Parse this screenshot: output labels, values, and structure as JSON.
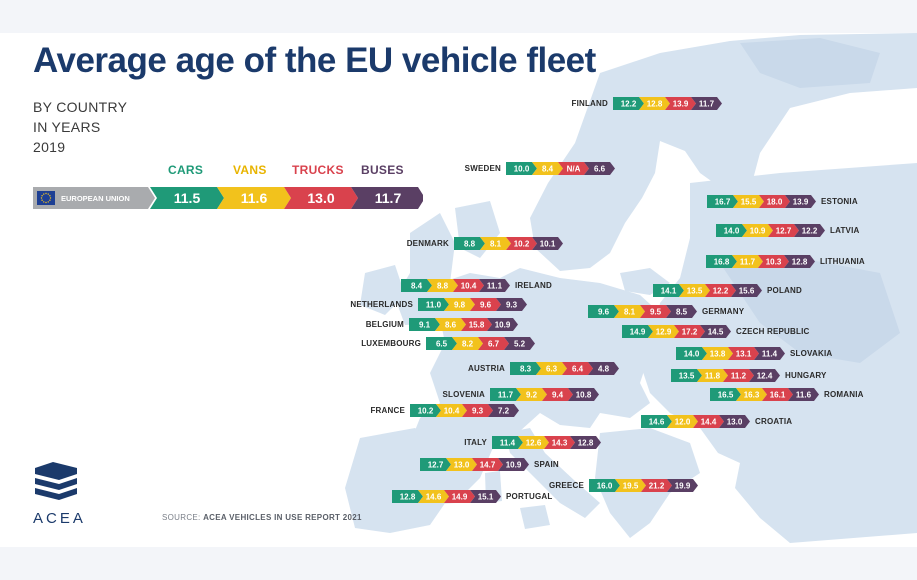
{
  "title": "Average age of the EU vehicle fleet",
  "subtitle": [
    "BY COUNTRY",
    "IN YEARS",
    "2019"
  ],
  "source": {
    "prefix": "SOURCE: ",
    "text": "ACEA VEHICLES IN USE REPORT 2021"
  },
  "logo_text": "ACEA",
  "colors": {
    "cars": "#1f9a78",
    "vans": "#f2c21c",
    "trucks": "#d9424d",
    "buses": "#5a3f64",
    "eu_grey": "#a9abae",
    "title": "#1b3a6b",
    "land": "#d6e3f0",
    "land_dark": "#c9d9ea",
    "water": "#ffffff"
  },
  "chart_data": {
    "type": "table",
    "series": [
      {
        "name": "CARS",
        "color": "#1f9a78"
      },
      {
        "name": "VANS",
        "color": "#f2c21c"
      },
      {
        "name": "TRUCKS",
        "color": "#d9424d"
      },
      {
        "name": "BUSES",
        "color": "#5a3f64"
      }
    ],
    "eu": {
      "label": "EUROPEAN UNION",
      "values": [
        "11.5",
        "11.6",
        "13.0",
        "11.7"
      ]
    },
    "countries": [
      {
        "name": "FINLAND",
        "values": [
          "12.2",
          "12.8",
          "13.9",
          "11.7"
        ],
        "label_side": "left"
      },
      {
        "name": "SWEDEN",
        "values": [
          "10.0",
          "8.4",
          "N/A",
          "6.6"
        ],
        "label_side": "left"
      },
      {
        "name": "ESTONIA",
        "values": [
          "16.7",
          "15.5",
          "18.0",
          "13.9"
        ],
        "label_side": "right"
      },
      {
        "name": "LATVIA",
        "values": [
          "14.0",
          "10.9",
          "12.7",
          "12.2"
        ],
        "label_side": "right"
      },
      {
        "name": "DENMARK",
        "values": [
          "8.8",
          "8.1",
          "10.2",
          "10.1"
        ],
        "label_side": "left"
      },
      {
        "name": "LITHUANIA",
        "values": [
          "16.8",
          "11.7",
          "10.3",
          "12.8"
        ],
        "label_side": "right"
      },
      {
        "name": "IRELAND",
        "values": [
          "8.4",
          "8.8",
          "10.4",
          "11.1"
        ],
        "label_side": "right"
      },
      {
        "name": "POLAND",
        "values": [
          "14.1",
          "13.5",
          "12.2",
          "15.6"
        ],
        "label_side": "right"
      },
      {
        "name": "NETHERLANDS",
        "values": [
          "11.0",
          "9.8",
          "9.6",
          "9.3"
        ],
        "label_side": "left"
      },
      {
        "name": "GERMANY",
        "values": [
          "9.6",
          "8.1",
          "9.5",
          "8.5"
        ],
        "label_side": "right"
      },
      {
        "name": "BELGIUM",
        "values": [
          "9.1",
          "8.6",
          "15.8",
          "10.9"
        ],
        "label_side": "left"
      },
      {
        "name": "CZECH REPUBLIC",
        "values": [
          "14.9",
          "12.9",
          "17.2",
          "14.5"
        ],
        "label_side": "right"
      },
      {
        "name": "LUXEMBOURG",
        "values": [
          "6.5",
          "8.2",
          "6.7",
          "5.2"
        ],
        "label_side": "left"
      },
      {
        "name": "SLOVAKIA",
        "values": [
          "14.0",
          "13.8",
          "13.1",
          "11.4"
        ],
        "label_side": "right"
      },
      {
        "name": "AUSTRIA",
        "values": [
          "8.3",
          "6.3",
          "6.4",
          "4.8"
        ],
        "label_side": "left"
      },
      {
        "name": "HUNGARY",
        "values": [
          "13.5",
          "11.8",
          "11.2",
          "12.4"
        ],
        "label_side": "right"
      },
      {
        "name": "SLOVENIA",
        "values": [
          "11.7",
          "9.2",
          "9.4",
          "10.8"
        ],
        "label_side": "left"
      },
      {
        "name": "ROMANIA",
        "values": [
          "16.5",
          "16.3",
          "16.1",
          "11.6"
        ],
        "label_side": "right"
      },
      {
        "name": "FRANCE",
        "values": [
          "10.2",
          "10.4",
          "9.3",
          "7.2"
        ],
        "label_side": "left"
      },
      {
        "name": "CROATIA",
        "values": [
          "14.6",
          "12.0",
          "14.4",
          "13.0"
        ],
        "label_side": "right"
      },
      {
        "name": "ITALY",
        "values": [
          "11.4",
          "12.6",
          "14.3",
          "12.8"
        ],
        "label_side": "left"
      },
      {
        "name": "SPAIN",
        "values": [
          "12.7",
          "13.0",
          "14.7",
          "10.9"
        ],
        "label_side": "right"
      },
      {
        "name": "GREECE",
        "values": [
          "16.0",
          "19.5",
          "21.2",
          "19.9"
        ],
        "label_side": "left"
      },
      {
        "name": "PORTUGAL",
        "values": [
          "12.8",
          "14.6",
          "14.9",
          "15.1"
        ],
        "label_side": "right"
      }
    ]
  }
}
